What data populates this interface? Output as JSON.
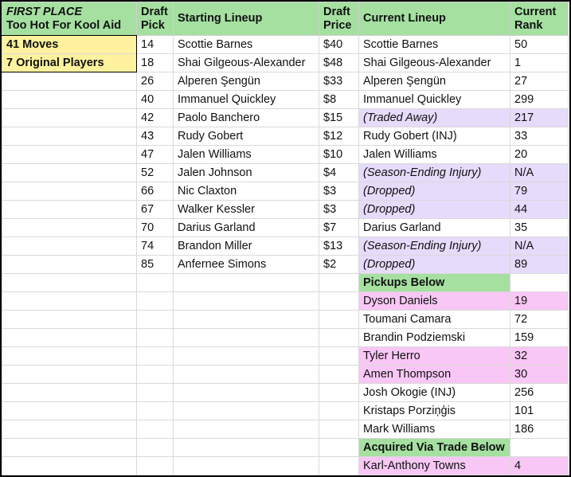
{
  "header": {
    "team_label": "FIRST PLACE",
    "team_name": "Too Hot For Kool Aid",
    "draft_pick": [
      "Draft",
      "Pick"
    ],
    "starting_lineup": "Starting Lineup",
    "draft_price": [
      "Draft",
      "Price"
    ],
    "current_lineup": "Current Lineup",
    "current_rank": [
      "Current",
      "Rank"
    ]
  },
  "summary": [
    "41 Moves",
    "7 Original Players"
  ],
  "colors": {
    "header_green": "#a5e0a1",
    "summary_yellow": "#fff29e",
    "changed_purple": "#e6dbfb",
    "highlight_pink": "#f8c7f5"
  },
  "rows": [
    {
      "pick": "14",
      "start": "Scottie Barnes",
      "price": "$40",
      "current": "Scottie Barnes",
      "rank": "50"
    },
    {
      "pick": "18",
      "start": "Shai Gilgeous-Alexander",
      "price": "$48",
      "current": "Shai Gilgeous-Alexander",
      "rank": "1"
    },
    {
      "pick": "26",
      "start": "Alperen Şengün",
      "price": "$33",
      "current": "Alperen Şengün",
      "rank": "27"
    },
    {
      "pick": "40",
      "start": "Immanuel Quickley",
      "price": "$8",
      "current": "Immanuel Quickley",
      "rank": "299"
    },
    {
      "pick": "42",
      "start": "Paolo Banchero",
      "price": "$15",
      "current": "(Traded Away)",
      "rank": "217",
      "style": "p"
    },
    {
      "pick": "43",
      "start": "Rudy Gobert",
      "price": "$12",
      "current": "Rudy Gobert (INJ)",
      "rank": "33"
    },
    {
      "pick": "47",
      "start": "Jalen Williams",
      "price": "$10",
      "current": "Jalen Williams",
      "rank": "20"
    },
    {
      "pick": "52",
      "start": "Jalen Johnson",
      "price": "$4",
      "current": "(Season-Ending Injury)",
      "rank": "N/A",
      "style": "p"
    },
    {
      "pick": "66",
      "start": "Nic Claxton",
      "price": "$3",
      "current": "(Dropped)",
      "rank": "79",
      "style": "p"
    },
    {
      "pick": "67",
      "start": "Walker Kessler",
      "price": "$3",
      "current": "(Dropped)",
      "rank": "44",
      "style": "p"
    },
    {
      "pick": "70",
      "start": "Darius Garland",
      "price": "$7",
      "current": "Darius Garland",
      "rank": "35"
    },
    {
      "pick": "74",
      "start": "Brandon Miller",
      "price": "$13",
      "current": "(Season-Ending Injury)",
      "rank": "N/A",
      "style": "p"
    },
    {
      "pick": "85",
      "start": "Anfernee Simons",
      "price": "$2",
      "current": "(Dropped)",
      "rank": "89",
      "style": "p"
    },
    {
      "current": "Pickups Below",
      "style": "g"
    },
    {
      "current": "Dyson Daniels",
      "rank": "19",
      "style": "k"
    },
    {
      "current": "Toumani Camara",
      "rank": "72"
    },
    {
      "current": "Brandin Podziemski",
      "rank": "159"
    },
    {
      "current": "Tyler Herro",
      "rank": "32",
      "style": "k"
    },
    {
      "current": "Amen Thompson",
      "rank": "30",
      "style": "k"
    },
    {
      "current": "Josh Okogie (INJ)",
      "rank": "256"
    },
    {
      "current": "Kristaps Porziņģis",
      "rank": "101"
    },
    {
      "current": "Mark Williams",
      "rank": "186"
    },
    {
      "current": "Acquired Via Trade Below",
      "style": "g"
    },
    {
      "current": "Karl-Anthony Towns",
      "rank": "4",
      "style": "k"
    }
  ]
}
